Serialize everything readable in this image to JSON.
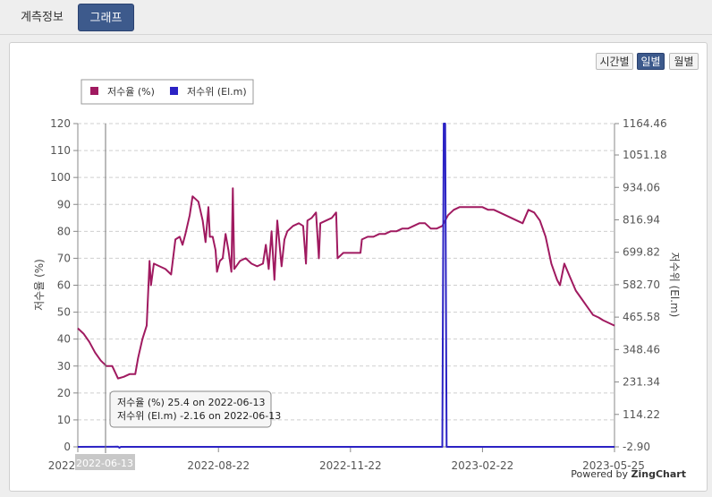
{
  "tabs": {
    "info_label": "계측정보",
    "graph_label": "그래프"
  },
  "period": {
    "hourly": "시간별",
    "daily": "일별",
    "monthly": "월별"
  },
  "powered": {
    "prefix": "Powered by ",
    "brand": "ZingChart"
  },
  "tooltip": {
    "line1": "저수율 (%) 25.4 on 2022-06-13",
    "line2": "저수위 (El.m) -2.16 on 2022-06-13"
  },
  "crosshair_label": "2022-06-13",
  "colors": {
    "series_rate": "#a01a60",
    "series_level": "#2b22c4",
    "active_button": "#3d5a8c"
  },
  "chart_data": {
    "type": "line",
    "ylabel_left": "저수율 (%)",
    "ylabel_right": "저수위 (El.m)",
    "ylim_left": [
      0,
      120
    ],
    "ylim_right": [
      -2.9,
      1164.46
    ],
    "yticks_left": [
      "0",
      "10",
      "20",
      "30",
      "40",
      "50",
      "60",
      "70",
      "80",
      "90",
      "100",
      "110",
      "120"
    ],
    "yticks_right": [
      "-2.90",
      "114.22",
      "231.34",
      "348.46",
      "465.58",
      "582.70",
      "699.82",
      "816.94",
      "934.06",
      "1051.18",
      "1164.46"
    ],
    "xticks": [
      "2022",
      "2022-08-22",
      "2022-11-22",
      "2023-02-22",
      "2023-05-25"
    ],
    "x_range": [
      "2022-05-16",
      "2023-05-25"
    ],
    "legend": [
      "저수율 (%)",
      "저수위 (El.m)"
    ],
    "legend_position": "top-left",
    "grid": true,
    "series": [
      {
        "name": "저수율 (%)",
        "points": [
          [
            "2022-05-16",
            44
          ],
          [
            "2022-05-20",
            42
          ],
          [
            "2022-05-24",
            39
          ],
          [
            "2022-05-28",
            35
          ],
          [
            "2022-06-01",
            32
          ],
          [
            "2022-06-05",
            30
          ],
          [
            "2022-06-09",
            30
          ],
          [
            "2022-06-13",
            25.4
          ],
          [
            "2022-06-17",
            26
          ],
          [
            "2022-06-21",
            27
          ],
          [
            "2022-06-25",
            27
          ],
          [
            "2022-06-27",
            33
          ],
          [
            "2022-06-30",
            40
          ],
          [
            "2022-07-03",
            45
          ],
          [
            "2022-07-05",
            69
          ],
          [
            "2022-07-06",
            60
          ],
          [
            "2022-07-08",
            68
          ],
          [
            "2022-07-12",
            67
          ],
          [
            "2022-07-16",
            66
          ],
          [
            "2022-07-20",
            64
          ],
          [
            "2022-07-23",
            77
          ],
          [
            "2022-07-26",
            78
          ],
          [
            "2022-07-28",
            75
          ],
          [
            "2022-07-30",
            79
          ],
          [
            "2022-08-02",
            86
          ],
          [
            "2022-08-04",
            93
          ],
          [
            "2022-08-08",
            91
          ],
          [
            "2022-08-11",
            84
          ],
          [
            "2022-08-13",
            76
          ],
          [
            "2022-08-15",
            89
          ],
          [
            "2022-08-16",
            78
          ],
          [
            "2022-08-18",
            78
          ],
          [
            "2022-08-20",
            73
          ],
          [
            "2022-08-21",
            65
          ],
          [
            "2022-08-23",
            69
          ],
          [
            "2022-08-25",
            70
          ],
          [
            "2022-08-27",
            79
          ],
          [
            "2022-08-29",
            73
          ],
          [
            "2022-08-31",
            65
          ],
          [
            "2022-09-01",
            96
          ],
          [
            "2022-09-02",
            66
          ],
          [
            "2022-09-06",
            69
          ],
          [
            "2022-09-10",
            70
          ],
          [
            "2022-09-14",
            68
          ],
          [
            "2022-09-18",
            67
          ],
          [
            "2022-09-22",
            68
          ],
          [
            "2022-09-24",
            75
          ],
          [
            "2022-09-26",
            66
          ],
          [
            "2022-09-28",
            80
          ],
          [
            "2022-09-30",
            62
          ],
          [
            "2022-10-02",
            84
          ],
          [
            "2022-10-05",
            67
          ],
          [
            "2022-10-07",
            77
          ],
          [
            "2022-10-09",
            80
          ],
          [
            "2022-10-13",
            82
          ],
          [
            "2022-10-17",
            83
          ],
          [
            "2022-10-20",
            82
          ],
          [
            "2022-10-22",
            68
          ],
          [
            "2022-10-23",
            84
          ],
          [
            "2022-10-26",
            85
          ],
          [
            "2022-10-29",
            87
          ],
          [
            "2022-10-31",
            70
          ],
          [
            "2022-11-01",
            83
          ],
          [
            "2022-11-05",
            84
          ],
          [
            "2022-11-09",
            85
          ],
          [
            "2022-11-12",
            87
          ],
          [
            "2022-11-13",
            70
          ],
          [
            "2022-11-17",
            72
          ],
          [
            "2022-11-21",
            72
          ],
          [
            "2022-11-25",
            72
          ],
          [
            "2022-11-29",
            72
          ],
          [
            "2022-11-30",
            77
          ],
          [
            "2022-12-04",
            78
          ],
          [
            "2022-12-08",
            78
          ],
          [
            "2022-12-12",
            79
          ],
          [
            "2022-12-16",
            79
          ],
          [
            "2022-12-20",
            80
          ],
          [
            "2022-12-24",
            80
          ],
          [
            "2022-12-28",
            81
          ],
          [
            "2023-01-01",
            81
          ],
          [
            "2023-01-05",
            82
          ],
          [
            "2023-01-09",
            83
          ],
          [
            "2023-01-13",
            83
          ],
          [
            "2023-01-17",
            81
          ],
          [
            "2023-01-21",
            81
          ],
          [
            "2023-01-25",
            82
          ],
          [
            "2023-01-29",
            86
          ],
          [
            "2023-02-02",
            88
          ],
          [
            "2023-02-06",
            89
          ],
          [
            "2023-02-10",
            89
          ],
          [
            "2023-02-14",
            89
          ],
          [
            "2023-02-18",
            89
          ],
          [
            "2023-02-22",
            89
          ],
          [
            "2023-02-26",
            88
          ],
          [
            "2023-03-02",
            88
          ],
          [
            "2023-03-06",
            87
          ],
          [
            "2023-03-10",
            86
          ],
          [
            "2023-03-14",
            85
          ],
          [
            "2023-03-18",
            84
          ],
          [
            "2023-03-22",
            83
          ],
          [
            "2023-03-26",
            88
          ],
          [
            "2023-03-30",
            87
          ],
          [
            "2023-04-03",
            84
          ],
          [
            "2023-04-07",
            78
          ],
          [
            "2023-04-11",
            68
          ],
          [
            "2023-04-15",
            62
          ],
          [
            "2023-04-17",
            60
          ],
          [
            "2023-04-20",
            68
          ],
          [
            "2023-04-24",
            63
          ],
          [
            "2023-04-28",
            58
          ],
          [
            "2023-05-02",
            55
          ],
          [
            "2023-05-06",
            52
          ],
          [
            "2023-05-10",
            49
          ],
          [
            "2023-05-14",
            48
          ],
          [
            "2023-05-17",
            47
          ],
          [
            "2023-05-21",
            46
          ],
          [
            "2023-05-25",
            45
          ]
        ]
      },
      {
        "name": "저수위 (El.m)",
        "points": [
          [
            "2022-05-16",
            -2.9
          ],
          [
            "2022-06-13",
            -2.16
          ],
          [
            "2022-06-14",
            -10
          ],
          [
            "2022-06-15",
            -2.9
          ],
          [
            "2023-01-25",
            -2.9
          ],
          [
            "2023-01-26",
            1164.46
          ],
          [
            "2023-01-27",
            1164.46
          ],
          [
            "2023-01-28",
            -2.9
          ],
          [
            "2023-05-25",
            -2.9
          ]
        ]
      }
    ]
  }
}
